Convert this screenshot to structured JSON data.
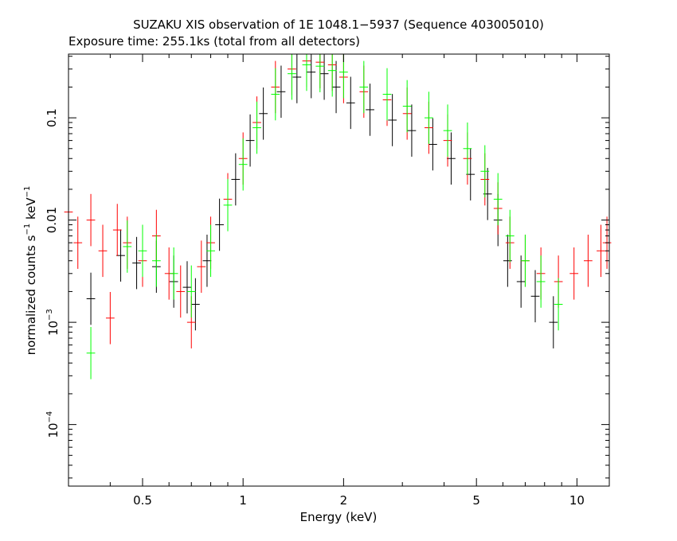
{
  "chart_data": {
    "type": "scatter",
    "title": "SUZAKU XIS observation of 1E 1048.1−5937 (Sequence 403005010)",
    "subtitle": "Exposure time: 255.1ks (total from all detectors)",
    "xlabel": "Energy (keV)",
    "ylabel_text": "normalized counts s",
    "ylabel_sup1": "−1",
    "ylabel_mid": " keV",
    "ylabel_sup2": "−1",
    "x_scale": "log",
    "y_scale": "log",
    "xlim": [
      0.3,
      12.5
    ],
    "ylim": [
      2.5e-05,
      0.42
    ],
    "x_ticks": [
      {
        "value": 0.5,
        "label": "0.5"
      },
      {
        "value": 1,
        "label": "1"
      },
      {
        "value": 2,
        "label": "2"
      },
      {
        "value": 5,
        "label": "5"
      },
      {
        "value": 10,
        "label": "10"
      }
    ],
    "y_ticks": [
      {
        "value": 0.1,
        "label": "0.1"
      },
      {
        "value": 0.01,
        "label": "0.01"
      },
      {
        "value": 0.001,
        "base": "10",
        "exp": "−3"
      },
      {
        "value": 0.0001,
        "base": "10",
        "exp": "−4"
      }
    ],
    "grid": false,
    "legend": "none",
    "series": [
      {
        "color": "#000000",
        "points": [
          [
            0.35,
            0.0017
          ],
          [
            0.43,
            0.0045
          ],
          [
            0.48,
            0.0038
          ],
          [
            0.55,
            0.0035
          ],
          [
            0.62,
            0.0025
          ],
          [
            0.68,
            0.0022
          ],
          [
            0.72,
            0.0015
          ],
          [
            0.78,
            0.004
          ],
          [
            0.85,
            0.009
          ],
          [
            0.95,
            0.025
          ],
          [
            1.05,
            0.06
          ],
          [
            1.15,
            0.11
          ],
          [
            1.3,
            0.18
          ],
          [
            1.45,
            0.25
          ],
          [
            1.6,
            0.28
          ],
          [
            1.75,
            0.27
          ],
          [
            1.9,
            0.2
          ],
          [
            2.1,
            0.14
          ],
          [
            2.4,
            0.12
          ],
          [
            2.8,
            0.095
          ],
          [
            3.2,
            0.075
          ],
          [
            3.7,
            0.055
          ],
          [
            4.2,
            0.04
          ],
          [
            4.8,
            0.028
          ],
          [
            5.4,
            0.018
          ],
          [
            5.8,
            0.01
          ],
          [
            6.2,
            0.004
          ],
          [
            6.8,
            0.0025
          ],
          [
            7.5,
            0.0018
          ],
          [
            8.5,
            0.001
          ]
        ]
      },
      {
        "color": "#ff0000",
        "points": [
          [
            0.3,
            0.012
          ],
          [
            0.32,
            0.006
          ],
          [
            0.35,
            0.01
          ],
          [
            0.38,
            0.005
          ],
          [
            0.4,
            0.0011
          ],
          [
            0.42,
            0.008
          ],
          [
            0.45,
            0.006
          ],
          [
            0.5,
            0.004
          ],
          [
            0.55,
            0.007
          ],
          [
            0.6,
            0.003
          ],
          [
            0.65,
            0.002
          ],
          [
            0.7,
            0.001
          ],
          [
            0.75,
            0.0035
          ],
          [
            0.8,
            0.006
          ],
          [
            0.9,
            0.016
          ],
          [
            1.0,
            0.04
          ],
          [
            1.1,
            0.09
          ],
          [
            1.25,
            0.2
          ],
          [
            1.4,
            0.3
          ],
          [
            1.55,
            0.36
          ],
          [
            1.7,
            0.35
          ],
          [
            1.85,
            0.33
          ],
          [
            2.0,
            0.25
          ],
          [
            2.3,
            0.18
          ],
          [
            2.7,
            0.15
          ],
          [
            3.1,
            0.11
          ],
          [
            3.6,
            0.08
          ],
          [
            4.1,
            0.06
          ],
          [
            4.7,
            0.04
          ],
          [
            5.3,
            0.025
          ],
          [
            5.8,
            0.013
          ],
          [
            6.3,
            0.006
          ],
          [
            7.0,
            0.004
          ],
          [
            7.8,
            0.003
          ],
          [
            8.8,
            0.0025
          ],
          [
            9.8,
            0.003
          ],
          [
            10.8,
            0.004
          ],
          [
            11.8,
            0.005
          ],
          [
            12.3,
            0.006
          ]
        ]
      },
      {
        "color": "#00ff00",
        "points": [
          [
            0.35,
            0.0005
          ],
          [
            0.45,
            0.0055
          ],
          [
            0.5,
            0.005
          ],
          [
            0.55,
            0.004
          ],
          [
            0.62,
            0.003
          ],
          [
            0.7,
            0.002
          ],
          [
            0.8,
            0.005
          ],
          [
            0.9,
            0.014
          ],
          [
            1.0,
            0.035
          ],
          [
            1.1,
            0.08
          ],
          [
            1.25,
            0.17
          ],
          [
            1.4,
            0.27
          ],
          [
            1.55,
            0.33
          ],
          [
            1.7,
            0.32
          ],
          [
            1.85,
            0.29
          ],
          [
            2.0,
            0.28
          ],
          [
            2.3,
            0.2
          ],
          [
            2.7,
            0.17
          ],
          [
            3.1,
            0.13
          ],
          [
            3.6,
            0.1
          ],
          [
            4.1,
            0.075
          ],
          [
            4.7,
            0.05
          ],
          [
            5.3,
            0.03
          ],
          [
            5.8,
            0.016
          ],
          [
            6.3,
            0.007
          ],
          [
            7.0,
            0.004
          ],
          [
            7.8,
            0.0025
          ],
          [
            8.8,
            0.0015
          ]
        ]
      }
    ]
  }
}
